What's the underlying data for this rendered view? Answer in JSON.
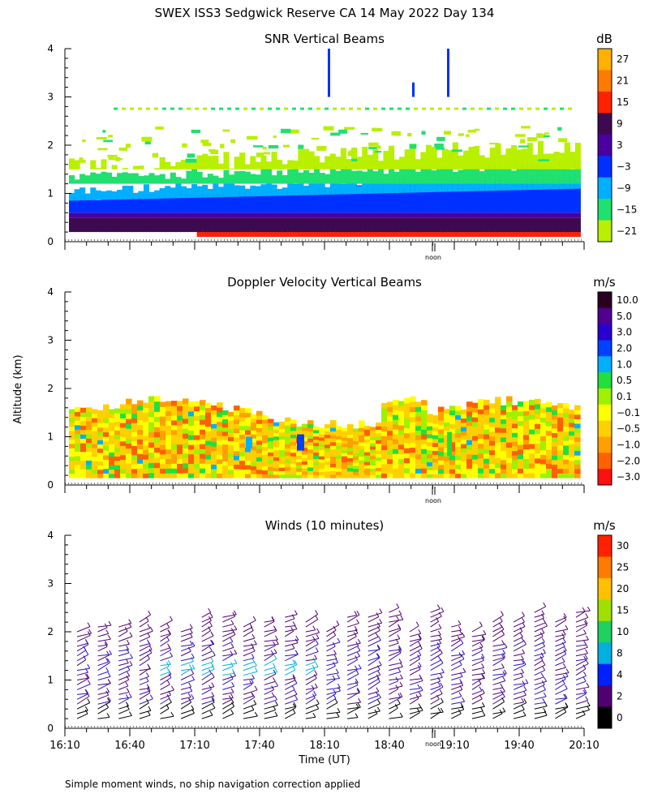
{
  "title": "SWEX ISS3 Sedgwick Reserve CA  14 May 2022 Day 134",
  "ylabel": "Altitude (km)",
  "xlabel": "Time (UT)",
  "footnote": "Simple moment winds, no ship navigation correction applied",
  "noon_label": "noon",
  "x_ticks": [
    "16:10",
    "16:40",
    "17:10",
    "17:40",
    "18:10",
    "18:40",
    "19:10",
    "19:40",
    "20:10"
  ],
  "chart_data": [
    {
      "type": "heatmap",
      "title": "SNR Vertical Beams",
      "units": "dB",
      "ylim": [
        0,
        4
      ],
      "y_ticks": [
        "0",
        "1",
        "2",
        "3",
        "4"
      ],
      "colorbar": {
        "labels": [
          "27",
          "21",
          "15",
          "9",
          "3",
          "−3",
          "−9",
          "−15",
          "−21"
        ],
        "colors": [
          "#ffb000",
          "#ff7a00",
          "#ff2200",
          "#3d0a50",
          "#4a00a0",
          "#0030ff",
          "#00b0ff",
          "#20e070",
          "#b8f000"
        ]
      },
      "layers": [
        {
          "label": "15",
          "alt_km": [
            0.1,
            0.25
          ],
          "color": "#ff2200"
        },
        {
          "label": "9",
          "alt_km": [
            0.2,
            0.5
          ],
          "color": "#3d0a50"
        },
        {
          "label": "3",
          "alt_km": [
            0.5,
            0.6
          ],
          "color": "#4a00a0"
        },
        {
          "label": "−3",
          "alt_km": [
            0.6,
            0.9
          ],
          "color": "#0030ff"
        },
        {
          "label": "−9",
          "alt_km": [
            0.9,
            1.2
          ],
          "color": "#00b0ff"
        },
        {
          "label": "−15",
          "alt_km": [
            1.2,
            1.5
          ],
          "color": "#20e070"
        },
        {
          "label": "−21",
          "alt_km": [
            1.5,
            2.0
          ],
          "color": "#b8f000"
        }
      ]
    },
    {
      "type": "heatmap",
      "title": "Doppler Velocity Vertical Beams",
      "units": "m/s",
      "ylim": [
        0,
        4
      ],
      "y_ticks": [
        "0",
        "1",
        "2",
        "3",
        "4"
      ],
      "colorbar": {
        "labels": [
          "10.0",
          "5.0",
          "3.0",
          "2.0",
          "1.0",
          "0.5",
          "0.1",
          "−0.1",
          "−0.5",
          "−1.0",
          "−2.0",
          "−3.0"
        ],
        "colors": [
          "#2a0020",
          "#500090",
          "#2800d0",
          "#0040ff",
          "#00b0ff",
          "#20e040",
          "#a0f000",
          "#ffff00",
          "#ffd000",
          "#ffa000",
          "#ff6000",
          "#ff1010"
        ]
      },
      "dominant_range": "−1.0 to 0.1 m/s (yellow/orange), 0.15–1.6 km"
    },
    {
      "type": "wind-barbs",
      "title": "Winds (10 minutes)",
      "units": "m/s",
      "ylim": [
        0,
        4
      ],
      "y_ticks": [
        "0",
        "1",
        "2",
        "3",
        "4"
      ],
      "colorbar": {
        "labels": [
          "30",
          "25",
          "20",
          "15",
          "10",
          "8",
          "4",
          "2",
          "0"
        ],
        "colors": [
          "#ff2200",
          "#ff7a00",
          "#ffc000",
          "#a0e000",
          "#20d060",
          "#00b0e0",
          "#0020ff",
          "#500070",
          "#000000"
        ]
      },
      "profiles_count": 25,
      "top_altitude_km": 2.3
    }
  ]
}
